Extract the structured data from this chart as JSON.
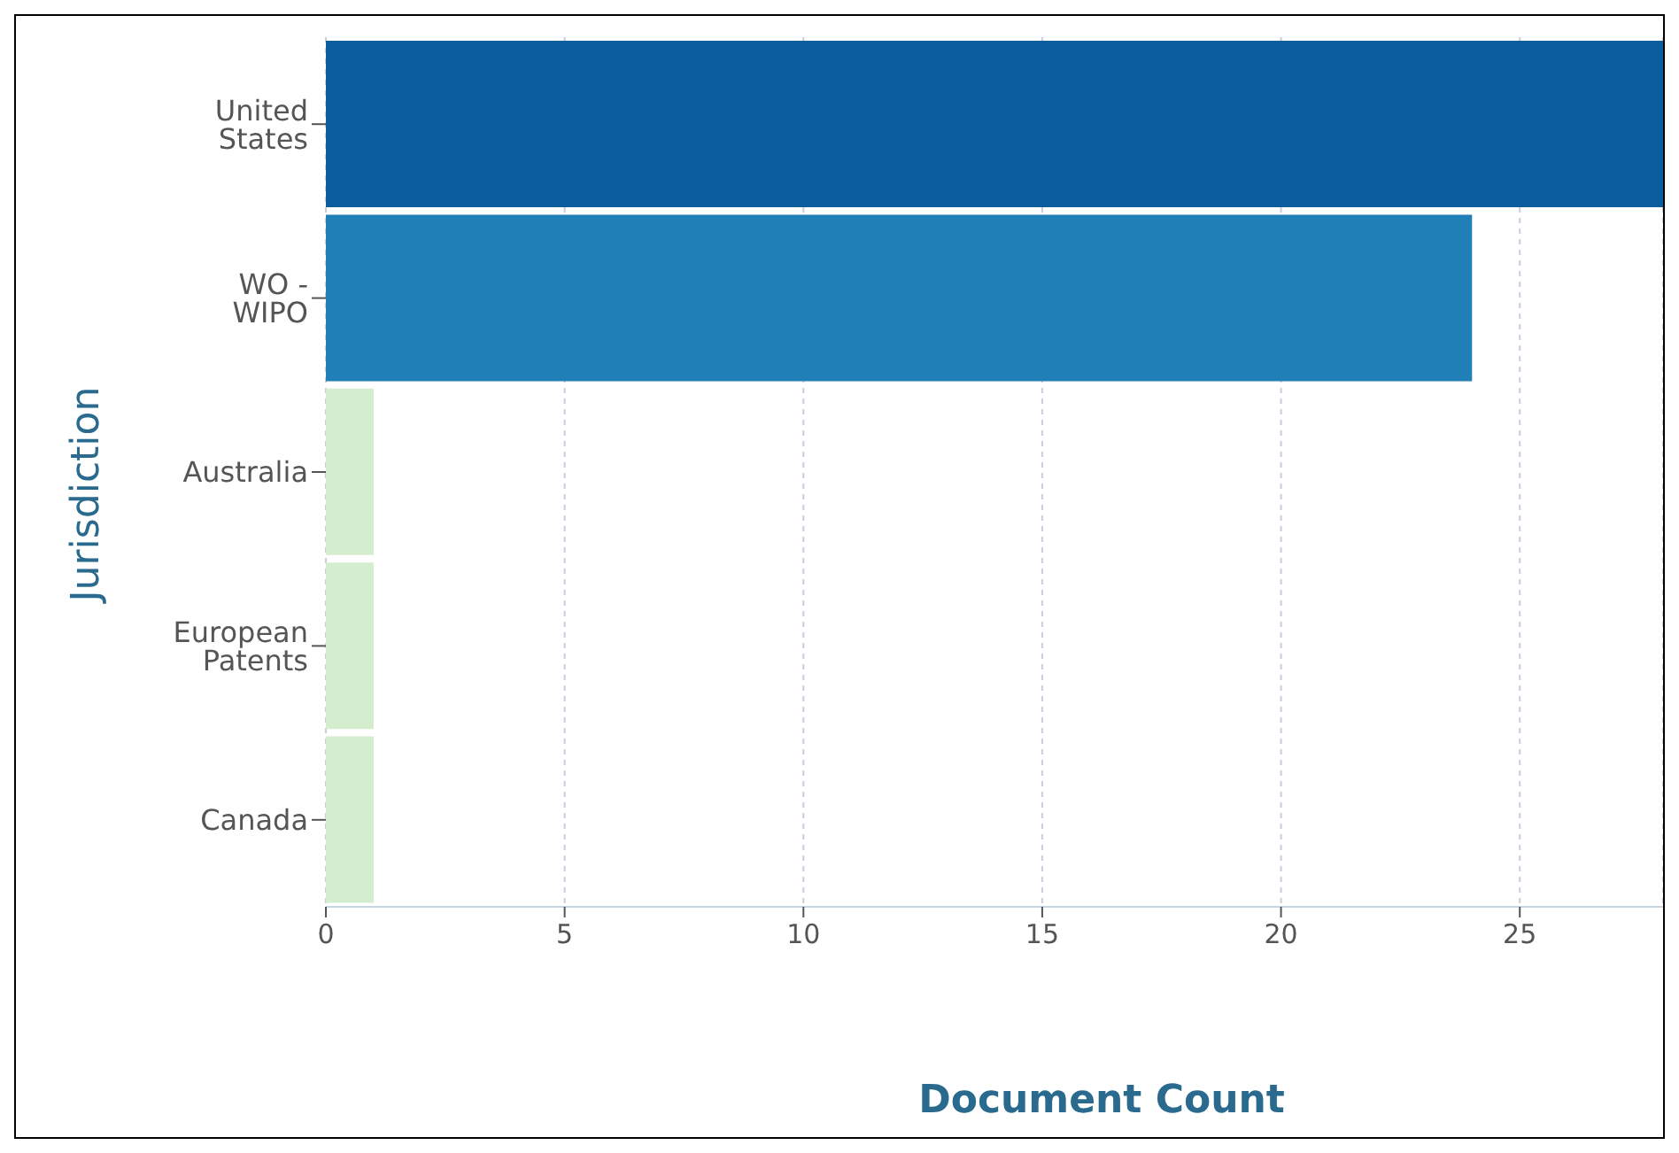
{
  "chart_data": {
    "type": "bar",
    "orientation": "horizontal",
    "xlabel": "Document Count",
    "ylabel": "Jurisdiction",
    "categories": [
      "United States",
      "WO - WIPO",
      "Australia",
      "European Patents",
      "Canada"
    ],
    "values": [
      28,
      24,
      1,
      1,
      1
    ],
    "colors": [
      "#0b5e9e",
      "#1f7fb6",
      "#d4edce",
      "#d4edce",
      "#d4edce"
    ],
    "xlim": [
      0,
      28
    ],
    "xticks": [
      0,
      5,
      10,
      15,
      20,
      25
    ],
    "grid": "x"
  }
}
